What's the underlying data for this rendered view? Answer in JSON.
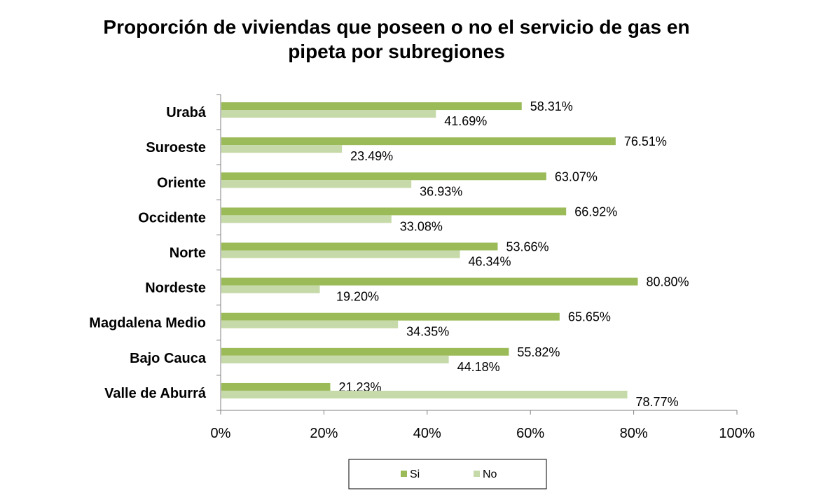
{
  "chart_data": {
    "type": "bar",
    "orientation": "horizontal",
    "title_lines": [
      "Proporción de viviendas que poseen o no el servicio de gas en",
      "pipeta por subregiones"
    ],
    "categories": [
      "Urabá",
      "Suroeste",
      "Oriente",
      "Occidente",
      "Norte",
      "Nordeste",
      "Magdalena Medio",
      "Bajo Cauca",
      "Valle de Aburrá"
    ],
    "series": [
      {
        "name": "Si",
        "color": "#9bbb59",
        "values": [
          58.31,
          76.51,
          63.07,
          66.92,
          53.66,
          80.8,
          65.65,
          55.82,
          21.23
        ],
        "labels": [
          "58.31%",
          "76.51%",
          "63.07%",
          "66.92%",
          "53.66%",
          "80.80%",
          "65.65%",
          "55.82%",
          "21.23%"
        ]
      },
      {
        "name": "No",
        "color": "#c6d9a9",
        "values": [
          41.69,
          23.49,
          36.93,
          33.08,
          46.34,
          19.2,
          34.35,
          44.18,
          78.77
        ],
        "labels": [
          "41.69%",
          "23.49%",
          "36.93%",
          "33.08%",
          "46.34%",
          "19.20%",
          "34.35%",
          "44.18%",
          "78.77%"
        ]
      }
    ],
    "xlim": [
      0,
      100
    ],
    "x_ticks": [
      "0%",
      "20%",
      "40%",
      "60%",
      "80%",
      "100%"
    ],
    "grid": false,
    "legend_position": "bottom"
  }
}
